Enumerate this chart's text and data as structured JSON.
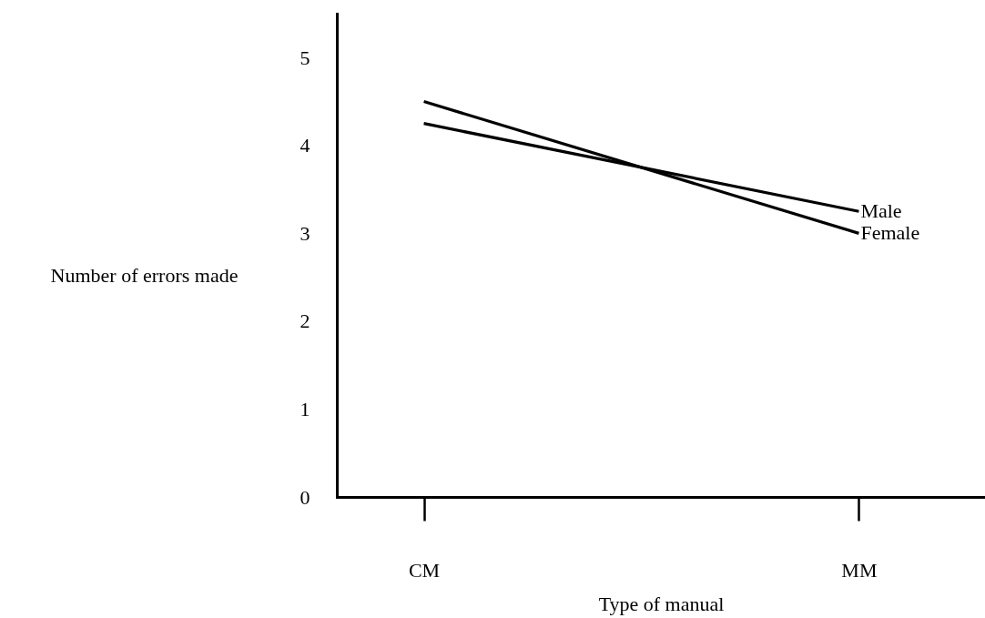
{
  "chart_data": {
    "type": "line",
    "xlabel": "Type of manual",
    "ylabel": "Number of errors made",
    "categories": [
      "CM",
      "MM"
    ],
    "series": [
      {
        "name": "Male",
        "color": "#000000",
        "values": [
          4.25,
          3.25
        ]
      },
      {
        "name": "Female",
        "color": "#000000",
        "values": [
          4.5,
          3.0
        ]
      }
    ],
    "ylim": [
      0,
      5.5
    ],
    "yticks": [
      0,
      1,
      2,
      3,
      4,
      5
    ]
  }
}
